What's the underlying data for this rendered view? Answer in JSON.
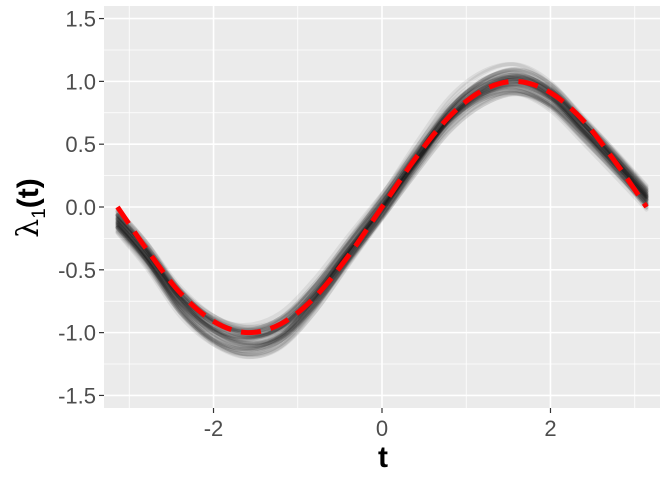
{
  "chart_data": {
    "type": "line",
    "title": "",
    "xlabel": "t",
    "ylabel": {
      "symbol": "λ",
      "subscript": "1",
      "suffix": "(t)"
    },
    "xlim": [
      -3.3,
      3.3
    ],
    "ylim": [
      -1.6,
      1.6
    ],
    "x_ticks": [
      -2,
      0,
      2
    ],
    "x_tick_labels": [
      "-2",
      "0",
      "2"
    ],
    "y_ticks": [
      -1.5,
      -1.0,
      -0.5,
      0.0,
      0.5,
      1.0,
      1.5
    ],
    "y_tick_labels": [
      "-1.5",
      "-1.0",
      "-0.5",
      "0.0",
      "0.5",
      "1.0",
      "1.5"
    ],
    "grid": true,
    "legend": "none",
    "background_color": "#ebebeb",
    "grid_color": "#ffffff",
    "series": [
      {
        "role": "reference",
        "style": "dashed",
        "color": "#ff0000",
        "x": [
          -3.14,
          -2.8,
          -2.4,
          -2.0,
          -1.6,
          -1.2,
          -0.8,
          -0.4,
          0.0,
          0.4,
          0.8,
          1.2,
          1.6,
          2.0,
          2.4,
          2.8,
          3.14
        ],
        "y": [
          0.0,
          -0.33,
          -0.68,
          -0.91,
          -1.0,
          -0.93,
          -0.72,
          -0.39,
          0.0,
          0.39,
          0.72,
          0.93,
          1.0,
          0.91,
          0.68,
          0.33,
          0.0
        ]
      },
      {
        "role": "estimate-band",
        "style": "semi-transparent lines",
        "color": "#000000",
        "x": [
          -3.14,
          -2.8,
          -2.4,
          -2.0,
          -1.6,
          -1.2,
          -0.8,
          -0.4,
          0.0,
          0.4,
          0.8,
          1.2,
          1.6,
          2.0,
          2.4,
          2.8,
          3.14
        ],
        "y_center": [
          -0.12,
          -0.38,
          -0.75,
          -0.98,
          -1.07,
          -0.99,
          -0.72,
          -0.36,
          0.0,
          0.38,
          0.73,
          0.94,
          1.01,
          0.89,
          0.62,
          0.33,
          0.07
        ]
      }
    ]
  }
}
